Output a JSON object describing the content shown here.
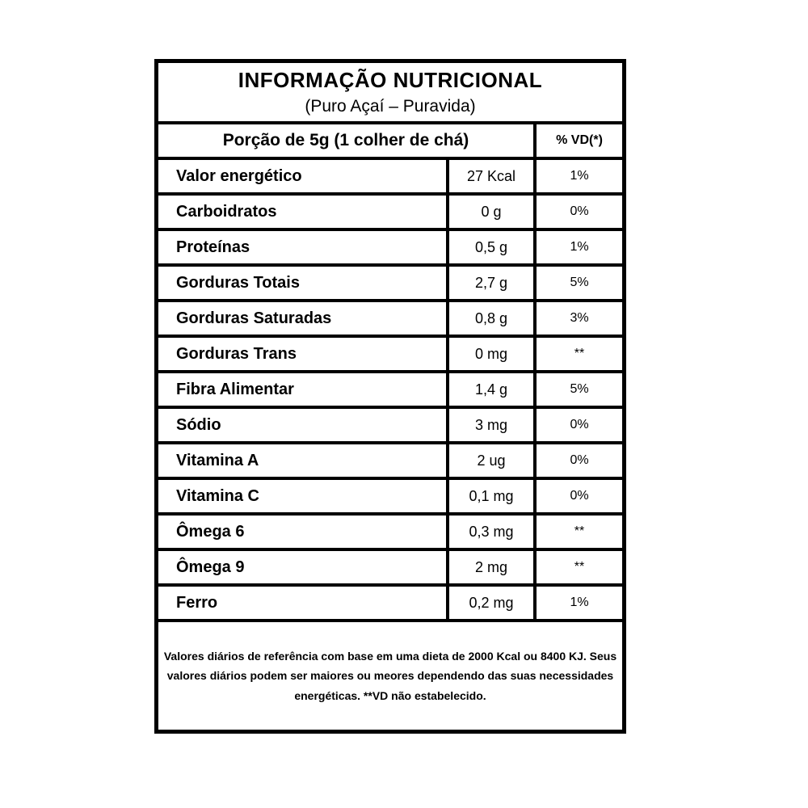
{
  "title": "INFORMAÇÃO NUTRICIONAL",
  "subtitle": "(Puro Açaí – Puravida)",
  "header": {
    "portion_label": "Porção de 5g (1 colher de chá)",
    "vd_label": "% VD(*)"
  },
  "table": {
    "rows": [
      {
        "name": "Valor energético",
        "amount": "27 Kcal",
        "vd": "1%"
      },
      {
        "name": "Carboidratos",
        "amount": "0 g",
        "vd": "0%"
      },
      {
        "name": "Proteínas",
        "amount": "0,5 g",
        "vd": "1%"
      },
      {
        "name": "Gorduras Totais",
        "amount": "2,7 g",
        "vd": "5%"
      },
      {
        "name": "Gorduras Saturadas",
        "amount": "0,8 g",
        "vd": "3%"
      },
      {
        "name": "Gorduras Trans",
        "amount": "0 mg",
        "vd": "**"
      },
      {
        "name": "Fibra Alimentar",
        "amount": "1,4 g",
        "vd": "5%"
      },
      {
        "name": "Sódio",
        "amount": "3 mg",
        "vd": "0%"
      },
      {
        "name": "Vitamina A",
        "amount": "2 ug",
        "vd": "0%"
      },
      {
        "name": "Vitamina C",
        "amount": "0,1 mg",
        "vd": "0%"
      },
      {
        "name": "Ômega 6",
        "amount": "0,3 mg",
        "vd": "**"
      },
      {
        "name": "Ômega 9",
        "amount": "2 mg",
        "vd": "**"
      },
      {
        "name": "Ferro",
        "amount": "0,2 mg",
        "vd": "1%"
      }
    ]
  },
  "footnote": "Valores diários de referência com base em uma dieta de 2000 Kcal ou 8400 KJ. Seus valores diários podem ser maiores ou meores dependendo das suas necessidades energéticas. **VD não estabelecido.",
  "colors": {
    "border": "#000000",
    "text": "#000000",
    "background": "#ffffff"
  }
}
